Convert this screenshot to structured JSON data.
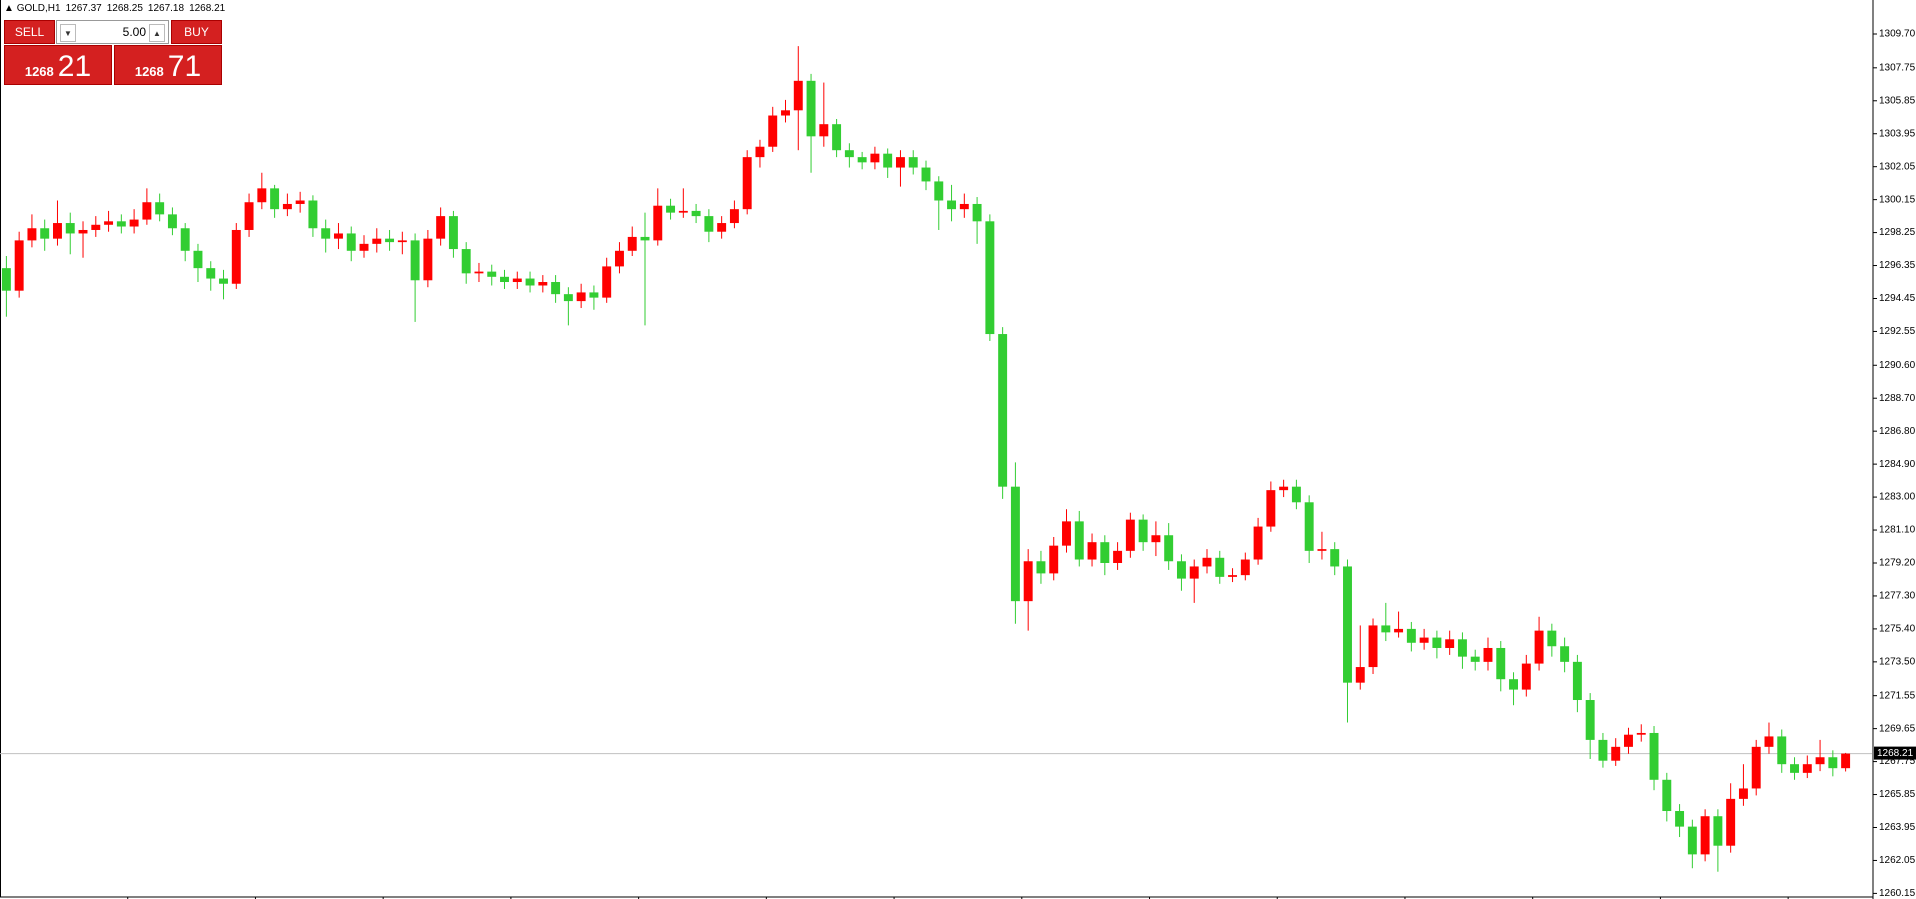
{
  "chart_data": {
    "type": "candlestick",
    "symbol": "GOLD,H1",
    "open": [
      1296.2,
      1294.9,
      1297.8,
      1298.5,
      1297.9,
      1298.8,
      1298.2,
      1298.4,
      1298.7,
      1298.9,
      1298.6,
      1299.0,
      1300.0,
      1299.3,
      1298.5,
      1297.2,
      1296.2,
      1295.6,
      1295.3,
      1298.4,
      1300.0,
      1300.8,
      1299.6,
      1299.9,
      1300.1,
      1298.5,
      1297.9,
      1298.2,
      1297.2,
      1297.6,
      1297.9,
      1297.7,
      1297.8,
      1295.5,
      1297.9,
      1299.2,
      1297.3,
      1295.9,
      1296.0,
      1295.7,
      1295.4,
      1295.6,
      1295.2,
      1295.4,
      1294.7,
      1294.3,
      1294.8,
      1294.5,
      1296.3,
      1297.2,
      1298.0,
      1297.8,
      1299.8,
      1299.4,
      1299.5,
      1299.2,
      1298.3,
      1298.8,
      1299.6,
      1302.6,
      1303.2,
      1305.0,
      1305.3,
      1307.0,
      1303.8,
      1304.5,
      1303.0,
      1302.6,
      1302.3,
      1302.8,
      1302.0,
      1302.6,
      1302.0,
      1301.2,
      1300.1,
      1299.6,
      1299.9,
      1298.9,
      1292.4,
      1283.6,
      1277.0,
      1279.3,
      1278.6,
      1280.2,
      1281.6,
      1279.4,
      1280.4,
      1279.2,
      1279.9,
      1281.7,
      1280.4,
      1280.8,
      1279.3,
      1278.3,
      1279.0,
      1279.5,
      1278.4,
      1278.5,
      1279.4,
      1281.3,
      1283.4,
      1283.6,
      1282.7,
      1279.9,
      1280.0,
      1279.0,
      1272.3,
      1273.2,
      1275.6,
      1275.2,
      1275.4,
      1274.6,
      1274.9,
      1274.3,
      1274.8,
      1273.8,
      1273.5,
      1274.3,
      1272.5,
      1271.9,
      1273.4,
      1275.3,
      1274.4,
      1273.5,
      1271.3,
      1269.0,
      1267.8,
      1268.6,
      1269.3,
      1269.4,
      1266.7,
      1264.9,
      1264.0,
      1262.4,
      1264.6,
      1262.9,
      1265.6,
      1266.2,
      1268.6,
      1269.2,
      1267.6,
      1267.1,
      1267.6,
      1268.0,
      1267.37
    ],
    "high": [
      1296.9,
      1298.3,
      1299.3,
      1299.0,
      1300.1,
      1299.4,
      1298.9,
      1299.2,
      1299.5,
      1299.3,
      1299.6,
      1300.8,
      1300.5,
      1299.7,
      1298.8,
      1297.6,
      1296.6,
      1296.1,
      1298.8,
      1300.5,
      1301.7,
      1301.0,
      1300.5,
      1300.6,
      1300.4,
      1299.0,
      1298.8,
      1298.6,
      1298.1,
      1298.5,
      1298.4,
      1298.3,
      1298.2,
      1298.4,
      1299.7,
      1299.5,
      1297.7,
      1296.5,
      1296.4,
      1296.1,
      1296.0,
      1296.0,
      1295.8,
      1295.8,
      1295.1,
      1295.3,
      1295.2,
      1296.8,
      1297.7,
      1298.6,
      1299.4,
      1300.8,
      1300.2,
      1300.8,
      1299.9,
      1299.6,
      1299.2,
      1300.1,
      1303.0,
      1303.6,
      1305.5,
      1305.9,
      1309.0,
      1307.4,
      1306.9,
      1304.8,
      1303.4,
      1302.9,
      1303.2,
      1303.1,
      1303.0,
      1303.0,
      1302.4,
      1301.5,
      1301.0,
      1300.5,
      1300.3,
      1299.3,
      1292.8,
      1285.0,
      1280.0,
      1279.9,
      1280.7,
      1282.3,
      1282.2,
      1280.9,
      1280.8,
      1280.4,
      1282.1,
      1282.0,
      1281.6,
      1281.5,
      1279.7,
      1279.4,
      1280.0,
      1279.9,
      1278.9,
      1279.8,
      1281.8,
      1283.9,
      1284.0,
      1284.0,
      1283.1,
      1281.0,
      1280.4,
      1279.4,
      1275.6,
      1276.0,
      1276.9,
      1276.4,
      1275.8,
      1275.4,
      1275.3,
      1275.3,
      1275.2,
      1274.2,
      1274.9,
      1274.7,
      1272.9,
      1273.9,
      1276.1,
      1275.7,
      1274.9,
      1273.9,
      1271.7,
      1269.4,
      1269.1,
      1269.7,
      1269.9,
      1269.8,
      1267.1,
      1265.3,
      1264.4,
      1265.0,
      1265.0,
      1266.5,
      1267.6,
      1269.0,
      1270.0,
      1269.6,
      1268.0,
      1268.1,
      1269.0,
      1268.4,
      1268.25
    ],
    "low": [
      1293.4,
      1294.5,
      1297.4,
      1297.2,
      1297.5,
      1297.0,
      1296.8,
      1298.0,
      1298.3,
      1298.2,
      1298.2,
      1298.7,
      1298.9,
      1298.1,
      1296.6,
      1295.4,
      1294.9,
      1294.4,
      1295.0,
      1298.0,
      1299.6,
      1299.1,
      1299.2,
      1299.4,
      1298.0,
      1297.1,
      1297.3,
      1296.6,
      1296.8,
      1297.1,
      1297.2,
      1297.0,
      1293.1,
      1295.1,
      1297.5,
      1296.8,
      1295.3,
      1295.4,
      1295.2,
      1295.0,
      1295.0,
      1294.8,
      1294.8,
      1294.2,
      1292.9,
      1293.9,
      1293.8,
      1294.2,
      1295.9,
      1296.9,
      1292.9,
      1297.5,
      1299.0,
      1299.1,
      1298.8,
      1297.7,
      1297.9,
      1298.5,
      1299.3,
      1302.0,
      1302.9,
      1304.6,
      1303.0,
      1301.7,
      1303.2,
      1302.6,
      1302.0,
      1301.9,
      1301.9,
      1301.4,
      1300.9,
      1301.6,
      1300.7,
      1298.4,
      1298.9,
      1299.1,
      1297.6,
      1292.0,
      1282.9,
      1275.7,
      1275.3,
      1278.0,
      1278.2,
      1279.8,
      1279.0,
      1279.0,
      1278.5,
      1278.8,
      1279.5,
      1279.9,
      1279.6,
      1278.8,
      1277.6,
      1276.9,
      1278.6,
      1278.0,
      1278.1,
      1278.2,
      1279.1,
      1281.0,
      1283.0,
      1282.3,
      1279.2,
      1279.4,
      1278.5,
      1270.0,
      1271.9,
      1272.8,
      1274.7,
      1274.9,
      1274.1,
      1274.2,
      1273.7,
      1273.9,
      1273.1,
      1273.0,
      1273.0,
      1271.8,
      1271.0,
      1271.5,
      1273.0,
      1273.8,
      1272.9,
      1270.6,
      1267.9,
      1267.4,
      1267.5,
      1268.2,
      1268.9,
      1266.1,
      1264.3,
      1263.4,
      1261.6,
      1262.0,
      1261.4,
      1262.5,
      1265.2,
      1265.8,
      1268.2,
      1267.1,
      1266.7,
      1266.8,
      1267.2,
      1266.9,
      1267.18
    ],
    "close": [
      1294.9,
      1297.8,
      1298.5,
      1297.9,
      1298.8,
      1298.2,
      1298.4,
      1298.7,
      1298.9,
      1298.6,
      1299.0,
      1300.0,
      1299.3,
      1298.5,
      1297.2,
      1296.2,
      1295.6,
      1295.3,
      1298.4,
      1300.0,
      1300.8,
      1299.6,
      1299.9,
      1300.1,
      1298.5,
      1297.9,
      1298.2,
      1297.2,
      1297.6,
      1297.9,
      1297.7,
      1297.8,
      1295.5,
      1297.9,
      1299.2,
      1297.3,
      1295.9,
      1296.0,
      1295.7,
      1295.4,
      1295.6,
      1295.2,
      1295.4,
      1294.7,
      1294.3,
      1294.8,
      1294.5,
      1296.3,
      1297.2,
      1298.0,
      1297.8,
      1299.8,
      1299.4,
      1299.5,
      1299.2,
      1298.3,
      1298.8,
      1299.6,
      1302.6,
      1303.2,
      1305.0,
      1305.3,
      1307.0,
      1303.8,
      1304.5,
      1303.0,
      1302.6,
      1302.3,
      1302.8,
      1302.0,
      1302.6,
      1302.0,
      1301.2,
      1300.1,
      1299.6,
      1299.9,
      1298.9,
      1292.4,
      1283.6,
      1277.0,
      1279.3,
      1278.6,
      1280.2,
      1281.6,
      1279.4,
      1280.4,
      1279.2,
      1279.9,
      1281.7,
      1280.4,
      1280.8,
      1279.3,
      1278.3,
      1279.0,
      1279.5,
      1278.4,
      1278.5,
      1279.4,
      1281.3,
      1283.4,
      1283.6,
      1282.7,
      1279.9,
      1280.0,
      1279.0,
      1272.3,
      1273.2,
      1275.6,
      1275.2,
      1275.4,
      1274.6,
      1274.9,
      1274.3,
      1274.8,
      1273.8,
      1273.5,
      1274.3,
      1272.5,
      1271.9,
      1273.4,
      1275.3,
      1274.4,
      1273.5,
      1271.3,
      1269.0,
      1267.8,
      1268.6,
      1269.3,
      1269.4,
      1266.7,
      1264.9,
      1264.0,
      1262.4,
      1264.6,
      1262.9,
      1265.6,
      1266.2,
      1268.6,
      1269.2,
      1267.6,
      1267.1,
      1267.6,
      1268.0,
      1267.37,
      1268.21
    ],
    "up_color": "#ff0000",
    "down_color": "#32cd32",
    "current_price": 1268.21,
    "ylim": [
      1260.0,
      1311.66
    ],
    "yticks": [
      {
        "value": 1309.7,
        "label": "1309.70"
      },
      1307.75,
      1305.85,
      1303.95,
      1302.05,
      1300.15,
      1298.25,
      1296.35,
      1294.45,
      1292.55,
      {
        "value": 1290.6,
        "label": "1290.60"
      },
      {
        "value": 1288.7,
        "label": "1288.70"
      },
      {
        "value": 1286.8,
        "label": "1286.80"
      },
      {
        "value": 1284.9,
        "label": "1284.90"
      },
      {
        "value": 1283.0,
        "label": "1283.00"
      },
      {
        "value": 1281.1,
        "label": "1281.10"
      },
      {
        "value": 1279.2,
        "label": "1279.20"
      },
      {
        "value": 1277.3,
        "label": "1277.30"
      },
      {
        "value": 1275.4,
        "label": "1275.40"
      },
      {
        "value": 1273.5,
        "label": "1273.50"
      },
      1271.55,
      1269.65,
      1267.75,
      1265.85,
      1263.95,
      1262.05,
      1260.15
    ]
  },
  "trade_panel": {
    "sell": "SELL",
    "buy": "BUY",
    "lots": "5.00",
    "bid_big": "1268",
    "bid_small": "21",
    "ask_big": "1268",
    "ask_small": "71"
  }
}
